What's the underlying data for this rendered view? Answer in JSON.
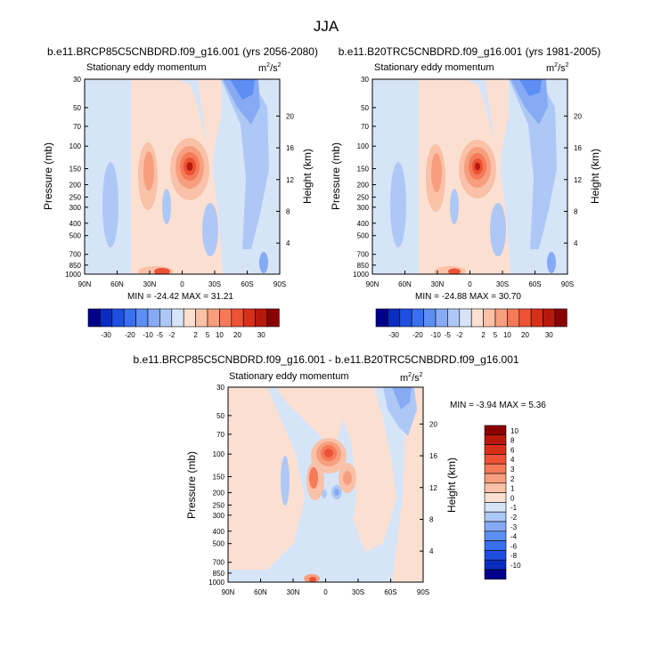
{
  "page_title": "JJA",
  "chart_data": [
    {
      "type": "heatmap",
      "title": "b.e11.BRCP85C5CNBDRD.f09_g16.001 (yrs 2056-2080)",
      "subtitle_left": "Stationary eddy momentum",
      "units_base": "m",
      "units_exp1": "2",
      "units_mid": "/s",
      "units_exp2": "2",
      "xlabel": "",
      "ylabel": "Pressure (mb)",
      "ylabel_right": "Height (km)",
      "x_ticks": [
        "90N",
        "60N",
        "30N",
        "0",
        "30S",
        "60S",
        "90S"
      ],
      "y_ticks": [
        "30",
        "50",
        "70",
        "100",
        "150",
        "200",
        "250",
        "300",
        "400",
        "500",
        "700",
        "850",
        "1000"
      ],
      "height_ticks": [
        "20",
        "16",
        "12",
        "8",
        "4"
      ],
      "stats": "MIN = -24.42  MAX = 31.21",
      "min": -24.42,
      "max": 31.21
    },
    {
      "type": "heatmap",
      "title": "b.e11.B20TRC5CNBDRD.f09_g16.001 (yrs 1981-2005)",
      "subtitle_left": "Stationary eddy momentum",
      "units_base": "m",
      "units_exp1": "2",
      "units_mid": "/s",
      "units_exp2": "2",
      "xlabel": "",
      "ylabel": "Pressure (mb)",
      "ylabel_right": "Height (km)",
      "x_ticks": [
        "90N",
        "60N",
        "30N",
        "0",
        "30S",
        "60S",
        "90S"
      ],
      "y_ticks": [
        "30",
        "50",
        "70",
        "100",
        "150",
        "200",
        "250",
        "300",
        "400",
        "500",
        "700",
        "850",
        "1000"
      ],
      "height_ticks": [
        "20",
        "16",
        "12",
        "8",
        "4"
      ],
      "stats": "MIN = -24.88  MAX = 30.70",
      "min": -24.88,
      "max": 30.7
    },
    {
      "type": "heatmap",
      "title": "b.e11.BRCP85C5CNBDRD.f09_g16.001 - b.e11.B20TRC5CNBDRD.f09_g16.001",
      "subtitle_left": "Stationary eddy momentum",
      "units_base": "m",
      "units_exp1": "2",
      "units_mid": "/s",
      "units_exp2": "2",
      "xlabel": "",
      "ylabel": "Pressure (mb)",
      "ylabel_right": "Height (km)",
      "x_ticks": [
        "90N",
        "60N",
        "30N",
        "0",
        "30S",
        "60S",
        "90S"
      ],
      "y_ticks": [
        "30",
        "50",
        "70",
        "100",
        "150",
        "200",
        "250",
        "300",
        "400",
        "500",
        "700",
        "850",
        "1000"
      ],
      "height_ticks": [
        "20",
        "16",
        "12",
        "8",
        "4"
      ],
      "stats": "MIN = -3.94  MAX =  5.36",
      "min": -3.94,
      "max": 5.36
    }
  ],
  "colorbar_top": {
    "labels": [
      "-30",
      "-20",
      "-10",
      "-5",
      "-2",
      "2",
      "5",
      "10",
      "20",
      "30"
    ],
    "colors": [
      "#00008b",
      "#0a2dbf",
      "#1f4fe0",
      "#3a6ff0",
      "#5d8ef2",
      "#86aaf4",
      "#aec8f6",
      "#d6e4f8",
      "#fbe0d2",
      "#f9c1a8",
      "#f79e7e",
      "#f47a58",
      "#ec5234",
      "#d83018",
      "#b8180c",
      "#8b0000"
    ]
  },
  "colorbar_diff": {
    "labels": [
      "10",
      "8",
      "6",
      "4",
      "3",
      "2",
      "1",
      "0",
      "-1",
      "-2",
      "-3",
      "-4",
      "-6",
      "-8",
      "-10"
    ],
    "colors": [
      "#8b0000",
      "#b8180c",
      "#d83018",
      "#ec5234",
      "#f47a58",
      "#f79e7e",
      "#f9c1a8",
      "#fbe0d2",
      "#d6e4f8",
      "#aec8f6",
      "#86aaf4",
      "#5d8ef2",
      "#3a6ff0",
      "#1f4fe0",
      "#0a2dbf",
      "#00008b"
    ]
  },
  "colors": {
    "field_pos_1": "#fbe0d2",
    "field_neg_1": "#d6e4f8"
  }
}
